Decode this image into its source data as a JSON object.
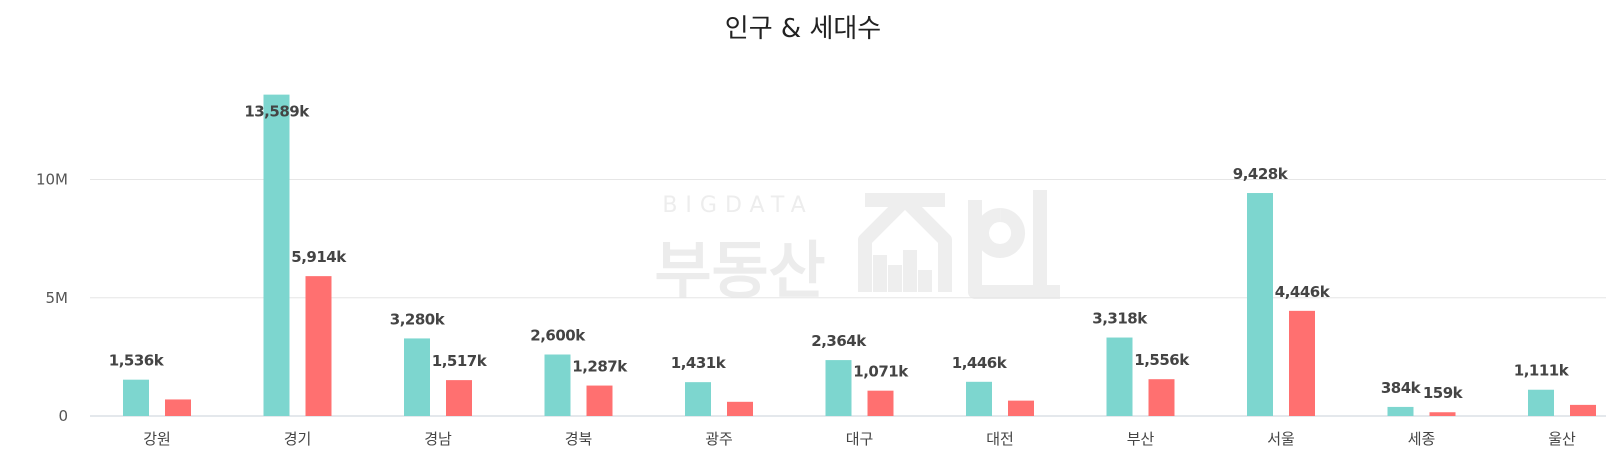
{
  "chart_data": {
    "type": "bar",
    "title": "인구 & 세대수",
    "categories": [
      "강원",
      "경기",
      "경남",
      "경북",
      "광주",
      "대구",
      "대전",
      "부산",
      "서울",
      "세종",
      "울산"
    ],
    "series": [
      {
        "color": "#7dd6cf",
        "values": [
          1536,
          13589,
          3280,
          2600,
          1431,
          2364,
          1446,
          3318,
          9428,
          384,
          1111
        ],
        "labels": [
          "1,536k",
          "13,589k",
          "3,280k",
          "2,600k",
          "1,431k",
          "2,364k",
          "1,446k",
          "3,318k",
          "9,428k",
          "384k",
          "1,111k"
        ]
      },
      {
        "color": "#ff7070",
        "values": [
          700,
          5914,
          1517,
          1287,
          600,
          1071,
          650,
          1556,
          4446,
          159,
          470
        ],
        "labels": [
          "",
          "5,914k",
          "1,517k",
          "1,287k",
          "",
          "1,071k",
          "",
          "1,556k",
          "4,446k",
          "159k",
          ""
        ]
      }
    ],
    "y_ticks": [
      {
        "value": 0,
        "label": "0"
      },
      {
        "value": 5000,
        "label": "5M"
      },
      {
        "value": 10000,
        "label": "10M"
      }
    ],
    "y_unit": "thousands",
    "grid": true,
    "legend": "none"
  },
  "watermark": {
    "top_text": "BIGDATA",
    "main_text": "부동산"
  }
}
